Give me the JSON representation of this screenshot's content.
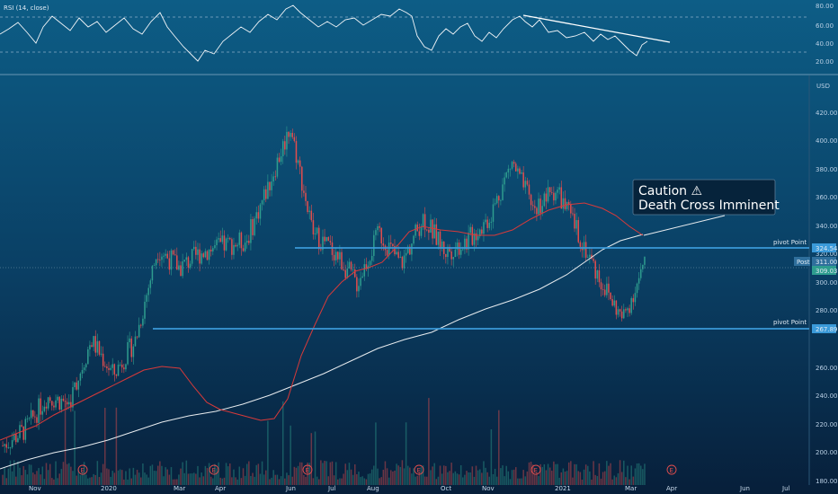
{
  "rsi_panel": {
    "label": "RSI (14, close)",
    "ticks": [
      "80.00",
      "60.00",
      "40.00",
      "20.00"
    ]
  },
  "price_panel": {
    "currency": "USD",
    "y_ticks": [
      "420.00",
      "400.00",
      "380.00",
      "360.00",
      "340.00",
      "320.00",
      "300.00",
      "280.00",
      "260.00",
      "240.00",
      "220.00",
      "200.00",
      "180.00"
    ],
    "x_ticks": [
      "Nov",
      "2020",
      "Mar",
      "Apr",
      "Jun",
      "Jul",
      "Aug",
      "Oct",
      "Nov",
      "2021",
      "Mar",
      "Apr",
      "Jun",
      "Jul"
    ],
    "pivot_label_1": "pivot Point",
    "pivot_label_2": "pivot Point",
    "pivot_price_1": "324.54",
    "pivot_price_2": "267.89",
    "post_label": "Post",
    "post_price": "311.00",
    "last_price": "309.03",
    "caution_line1": "Caution ⚠",
    "caution_line2": "Death Cross Imminent",
    "earnings_marker": "E"
  },
  "colors": {
    "background_top": "#0d5d86",
    "background_bottom": "#071f3a",
    "candle_up": "#2e9d8f",
    "candle_down": "#e24d4d",
    "ma_fast": "#d83a3a",
    "ma_slow": "#e8ecef",
    "pivot_line": "#3a9ad9"
  },
  "chart_data": {
    "type": "candlestick",
    "series": [
      {
        "name": "",
        "values": [
          195,
          205,
          226,
          222,
          262,
          240,
          262,
          320,
          308,
          318,
          322,
          325,
          360,
          398,
          330,
          318,
          298,
          330,
          310,
          340,
          318,
          325,
          340,
          375,
          345,
          358,
          330,
          300,
          275,
          309
        ]
      }
    ],
    "pivot_levels": [
      324.54,
      267.89
    ],
    "ylim": [
      170,
      430
    ]
  }
}
